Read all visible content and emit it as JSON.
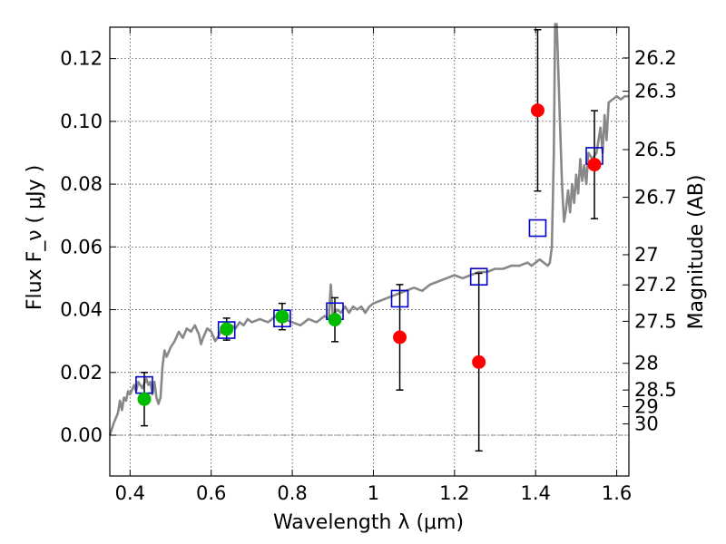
{
  "chart_data": {
    "type": "scatter",
    "xlabel": "Wavelength  λ (μm)",
    "ylabel": "Flux  F_ν  ( μJy )",
    "ylabel_right": "Magnitude (AB)",
    "xlim": [
      0.35,
      1.63
    ],
    "ylim": [
      -0.013,
      0.13
    ],
    "grid": true,
    "x_ticks": [
      0.4,
      0.6,
      0.8,
      1.0,
      1.2,
      1.4,
      1.6
    ],
    "x_tick_labels": [
      "0.4",
      "0.6",
      "0.8",
      "1",
      "1.2",
      "1.4",
      "1.6"
    ],
    "y_ticks": [
      0.0,
      0.02,
      0.04,
      0.06,
      0.08,
      0.1,
      0.12
    ],
    "y_tick_labels": [
      "0.00",
      "0.02",
      "0.04",
      "0.06",
      "0.08",
      "0.10",
      "0.12"
    ],
    "mag_ticks": [
      {
        "flux": 0.1202,
        "label": "26.2"
      },
      {
        "flux": 0.1096,
        "label": "26.3"
      },
      {
        "flux": 0.091,
        "label": "26.5"
      },
      {
        "flux": 0.0758,
        "label": "26.7"
      },
      {
        "flux": 0.0575,
        "label": "27"
      },
      {
        "flux": 0.0479,
        "label": "27.2"
      },
      {
        "flux": 0.0363,
        "label": "27.5"
      },
      {
        "flux": 0.0229,
        "label": "28"
      },
      {
        "flux": 0.0144,
        "label": "28.5"
      },
      {
        "flux": 0.0091,
        "label": "29"
      },
      {
        "flux": 0.0036,
        "label": "30"
      }
    ],
    "series": [
      {
        "marker": "circle",
        "color": "#00bb00",
        "points": [
          {
            "x": 0.435,
            "y": 0.0115,
            "err": 0.0085
          },
          {
            "x": 0.638,
            "y": 0.0338,
            "err": 0.0035
          },
          {
            "x": 0.775,
            "y": 0.0378,
            "err": 0.0042
          },
          {
            "x": 0.905,
            "y": 0.0368,
            "err": 0.007
          }
        ]
      },
      {
        "marker": "circle",
        "color": "#ff0000",
        "points": [
          {
            "x": 1.065,
            "y": 0.0312,
            "err": 0.0168
          },
          {
            "x": 1.26,
            "y": 0.0233,
            "err": 0.0283
          },
          {
            "x": 1.405,
            "y": 0.1035,
            "err": 0.0257
          },
          {
            "x": 1.545,
            "y": 0.0862,
            "err": 0.0172
          }
        ]
      },
      {
        "marker": "open-square",
        "color": "#0000cc",
        "points": [
          {
            "x": 0.435,
            "y": 0.016
          },
          {
            "x": 0.638,
            "y": 0.0335
          },
          {
            "x": 0.775,
            "y": 0.0372
          },
          {
            "x": 0.905,
            "y": 0.0395
          },
          {
            "x": 1.065,
            "y": 0.0435
          },
          {
            "x": 1.26,
            "y": 0.0505
          },
          {
            "x": 1.405,
            "y": 0.066
          },
          {
            "x": 1.545,
            "y": 0.089
          }
        ]
      }
    ],
    "model_spectrum": {
      "color": "#888888",
      "points": [
        [
          0.35,
          0.0
        ],
        [
          0.36,
          0.004
        ],
        [
          0.37,
          0.007
        ],
        [
          0.375,
          0.011
        ],
        [
          0.38,
          0.008
        ],
        [
          0.385,
          0.012
        ],
        [
          0.39,
          0.011
        ],
        [
          0.395,
          0.014
        ],
        [
          0.4,
          0.013
        ],
        [
          0.41,
          0.016
        ],
        [
          0.415,
          0.014
        ],
        [
          0.42,
          0.017
        ],
        [
          0.43,
          0.015
        ],
        [
          0.44,
          0.018
        ],
        [
          0.445,
          0.016
        ],
        [
          0.45,
          0.017
        ],
        [
          0.455,
          0.013
        ],
        [
          0.46,
          0.017
        ],
        [
          0.465,
          0.012
        ],
        [
          0.47,
          0.01
        ],
        [
          0.475,
          0.012
        ],
        [
          0.48,
          0.022
        ],
        [
          0.485,
          0.027
        ],
        [
          0.49,
          0.025
        ],
        [
          0.5,
          0.028
        ],
        [
          0.51,
          0.03
        ],
        [
          0.52,
          0.033
        ],
        [
          0.53,
          0.031
        ],
        [
          0.54,
          0.034
        ],
        [
          0.55,
          0.033
        ],
        [
          0.56,
          0.035
        ],
        [
          0.57,
          0.032
        ],
        [
          0.575,
          0.029
        ],
        [
          0.58,
          0.031
        ],
        [
          0.59,
          0.034
        ],
        [
          0.6,
          0.033
        ],
        [
          0.61,
          0.03
        ],
        [
          0.62,
          0.032
        ],
        [
          0.63,
          0.035
        ],
        [
          0.64,
          0.034
        ],
        [
          0.65,
          0.035
        ],
        [
          0.66,
          0.034
        ],
        [
          0.67,
          0.036
        ],
        [
          0.68,
          0.035
        ],
        [
          0.69,
          0.037
        ],
        [
          0.7,
          0.036
        ],
        [
          0.72,
          0.037
        ],
        [
          0.74,
          0.036
        ],
        [
          0.76,
          0.038
        ],
        [
          0.78,
          0.037
        ],
        [
          0.8,
          0.036
        ],
        [
          0.82,
          0.035
        ],
        [
          0.84,
          0.037
        ],
        [
          0.86,
          0.036
        ],
        [
          0.88,
          0.038
        ],
        [
          0.89,
          0.037
        ],
        [
          0.895,
          0.048
        ],
        [
          0.9,
          0.038
        ],
        [
          0.91,
          0.04
        ],
        [
          0.92,
          0.039
        ],
        [
          0.93,
          0.041
        ],
        [
          0.94,
          0.039
        ],
        [
          0.95,
          0.041
        ],
        [
          0.96,
          0.04
        ],
        [
          0.97,
          0.041
        ],
        [
          0.98,
          0.039
        ],
        [
          0.99,
          0.041
        ],
        [
          1.0,
          0.042
        ],
        [
          1.02,
          0.043
        ],
        [
          1.04,
          0.044
        ],
        [
          1.06,
          0.045
        ],
        [
          1.08,
          0.046
        ],
        [
          1.1,
          0.047
        ],
        [
          1.12,
          0.046
        ],
        [
          1.14,
          0.048
        ],
        [
          1.16,
          0.049
        ],
        [
          1.18,
          0.05
        ],
        [
          1.2,
          0.051
        ],
        [
          1.22,
          0.05
        ],
        [
          1.24,
          0.051
        ],
        [
          1.26,
          0.052
        ],
        [
          1.28,
          0.052
        ],
        [
          1.3,
          0.053
        ],
        [
          1.32,
          0.053
        ],
        [
          1.34,
          0.054
        ],
        [
          1.36,
          0.054
        ],
        [
          1.38,
          0.055
        ],
        [
          1.39,
          0.054
        ],
        [
          1.4,
          0.055
        ],
        [
          1.41,
          0.056
        ],
        [
          1.42,
          0.055
        ],
        [
          1.43,
          0.054
        ],
        [
          1.435,
          0.055
        ],
        [
          1.44,
          0.06
        ],
        [
          1.445,
          0.09
        ],
        [
          1.448,
          0.131
        ],
        [
          1.452,
          0.131
        ],
        [
          1.455,
          0.12
        ],
        [
          1.46,
          0.1
        ],
        [
          1.465,
          0.08
        ],
        [
          1.47,
          0.068
        ],
        [
          1.475,
          0.072
        ],
        [
          1.48,
          0.078
        ],
        [
          1.485,
          0.071
        ],
        [
          1.49,
          0.08
        ],
        [
          1.495,
          0.074
        ],
        [
          1.5,
          0.083
        ],
        [
          1.505,
          0.077
        ],
        [
          1.51,
          0.088
        ],
        [
          1.515,
          0.081
        ],
        [
          1.52,
          0.086
        ],
        [
          1.525,
          0.08
        ],
        [
          1.53,
          0.09
        ],
        [
          1.54,
          0.088
        ],
        [
          1.55,
          0.09
        ],
        [
          1.56,
          0.098
        ],
        [
          1.565,
          0.09
        ],
        [
          1.57,
          0.102
        ],
        [
          1.575,
          0.094
        ],
        [
          1.58,
          0.106
        ],
        [
          1.59,
          0.107
        ],
        [
          1.6,
          0.108
        ],
        [
          1.61,
          0.107
        ],
        [
          1.62,
          0.108
        ],
        [
          1.63,
          0.108
        ]
      ]
    }
  }
}
